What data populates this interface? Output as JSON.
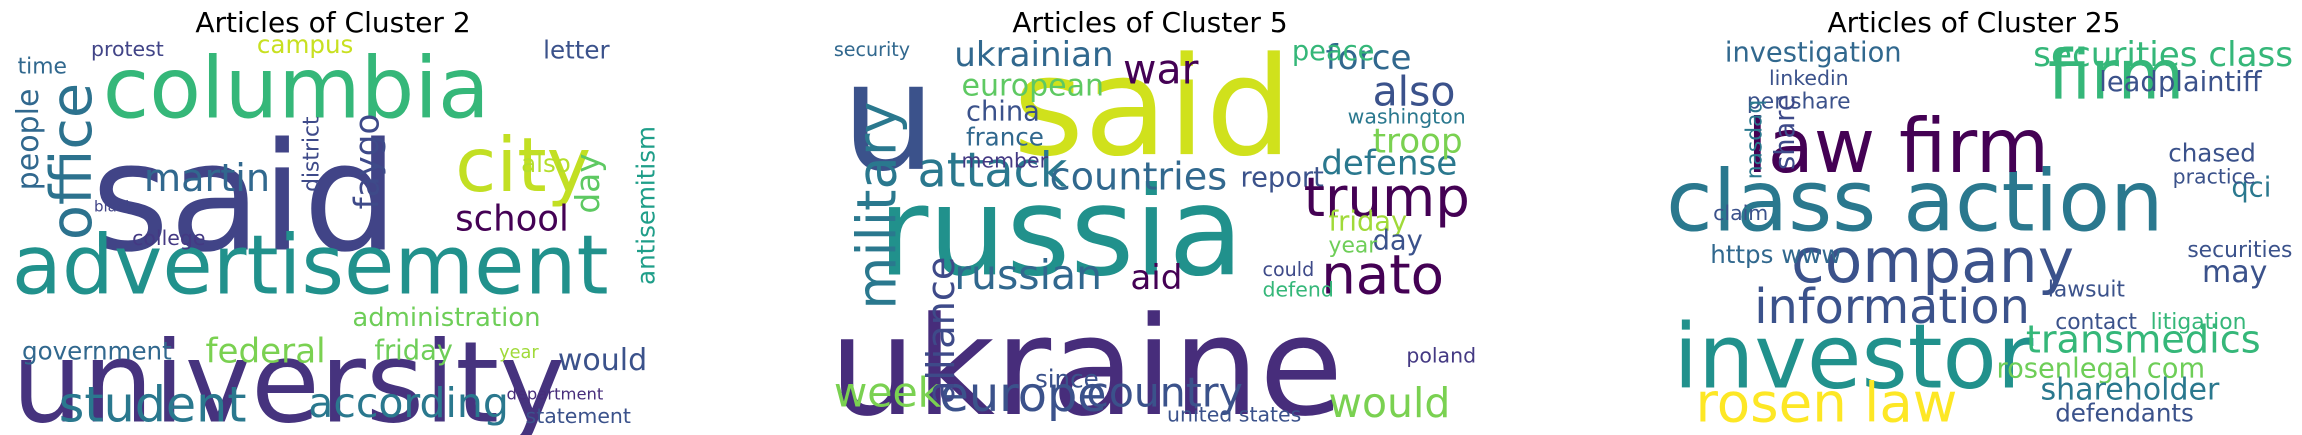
{
  "panels": [
    {
      "title": "Articles of Cluster 2",
      "words": [
        "said",
        "columbia",
        "university",
        "advertisement",
        "city",
        "office",
        "people",
        "student",
        "according",
        "martin",
        "faygo",
        "school",
        "federal",
        "government",
        "friday",
        "administration",
        "day",
        "letter",
        "protest",
        "campus",
        "would",
        "antisemitism",
        "statement",
        "college",
        "time",
        "also",
        "district",
        "department",
        "year",
        "black"
      ]
    },
    {
      "title": "Articles of Cluster 5",
      "words": [
        "ukraine",
        "russia",
        "said",
        "u",
        "military",
        "attack",
        "war",
        "ukrainian",
        "european",
        "china",
        "france",
        "member",
        "countries",
        "report",
        "trump",
        "nato",
        "would",
        "defense",
        "also",
        "troop",
        "force",
        "peace",
        "washington",
        "friday",
        "day",
        "europe",
        "country",
        "week",
        "russian",
        "aid",
        "alliance",
        "defend",
        "poland",
        "united states",
        "year",
        "could",
        "since",
        "security"
      ]
    },
    {
      "title": "Articles of Cluster 25",
      "words": [
        "class action",
        "investor",
        "law firm",
        "company",
        "information",
        "rosen law",
        "firm",
        "securities class",
        "plaintiff",
        "lead",
        "investigation",
        "linkedin",
        "per share",
        "chased",
        "qci",
        "transmedics",
        "rosenlegal com",
        "shareholder",
        "defendants",
        "https www",
        "claim",
        "share",
        "nasdaq",
        "contact",
        "litigation",
        "securities",
        "may",
        "practice",
        "lawsuit"
      ]
    }
  ]
}
